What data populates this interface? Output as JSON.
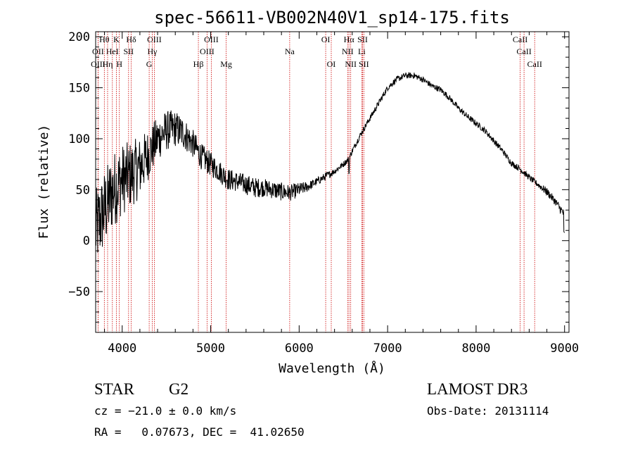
{
  "chart_data": {
    "type": "line",
    "title": "spec-56611-VB002N40V1_sp14-175.fits",
    "xlabel": "Wavelength (Å)",
    "ylabel": "Flux (relative)",
    "xlim": [
      3700,
      9050
    ],
    "ylim": [
      -90,
      205
    ],
    "xticks": [
      4000,
      5000,
      6000,
      7000,
      8000,
      9000
    ],
    "yticks": [
      -50,
      0,
      50,
      100,
      150,
      200
    ],
    "xtick_labels": [
      "4000",
      "5000",
      "6000",
      "7000",
      "8000",
      "9000"
    ],
    "ytick_labels": [
      "−50",
      "0",
      "50",
      "100",
      "150",
      "200"
    ],
    "series": [
      {
        "name": "spectrum",
        "x": [
          3700,
          3800,
          3900,
          4000,
          4100,
          4200,
          4300,
          4400,
          4500,
          4600,
          4700,
          4800,
          4900,
          5000,
          5100,
          5200,
          5300,
          5400,
          5500,
          5600,
          5700,
          5800,
          5900,
          6000,
          6100,
          6200,
          6300,
          6400,
          6500,
          6560,
          6600,
          6700,
          6800,
          6900,
          7000,
          7100,
          7200,
          7300,
          7400,
          7500,
          7600,
          7700,
          7800,
          7900,
          8000,
          8100,
          8200,
          8300,
          8400,
          8500,
          8600,
          8700,
          8800,
          8900,
          9000
        ],
        "y": [
          10,
          30,
          50,
          60,
          65,
          72,
          85,
          100,
          108,
          110,
          105,
          95,
          82,
          75,
          68,
          60,
          58,
          55,
          52,
          52,
          50,
          48,
          47,
          50,
          53,
          58,
          63,
          68,
          75,
          80,
          88,
          105,
          120,
          135,
          150,
          158,
          162,
          162,
          158,
          152,
          148,
          140,
          130,
          122,
          115,
          108,
          98,
          88,
          76,
          70,
          62,
          55,
          48,
          38,
          25
        ],
        "noise": [
          40,
          40,
          38,
          35,
          33,
          30,
          25,
          22,
          20,
          18,
          16,
          14,
          13,
          12,
          11,
          11,
          10,
          10,
          10,
          9,
          9,
          9,
          8,
          7,
          5,
          4,
          4,
          3,
          3,
          3,
          3,
          3,
          3,
          3,
          3,
          3,
          3,
          3,
          3,
          3,
          3,
          3,
          3,
          3,
          3,
          3,
          3,
          3,
          3,
          3,
          3,
          3,
          4,
          4,
          5
        ]
      }
    ],
    "spectral_lines": [
      {
        "label": "Hθ",
        "x": 3798,
        "row": 0
      },
      {
        "label": "K",
        "x": 3934,
        "row": 0
      },
      {
        "label": "Hδ",
        "x": 4102,
        "row": 0
      },
      {
        "label": "OIII",
        "x": 4363,
        "row": 0
      },
      {
        "label": "OIII",
        "x": 5007,
        "row": 0
      },
      {
        "label": "OI",
        "x": 6300,
        "row": 0
      },
      {
        "label": "Hα",
        "x": 6563,
        "row": 0
      },
      {
        "label": "SII",
        "x": 6717,
        "row": 0
      },
      {
        "label": "CaII",
        "x": 8498,
        "row": 0
      },
      {
        "label": "OII",
        "x": 3727,
        "row": 1
      },
      {
        "label": "HeI",
        "x": 3889,
        "row": 1
      },
      {
        "label": "SII",
        "x": 4072,
        "row": 1
      },
      {
        "label": "Hγ",
        "x": 4340,
        "row": 1
      },
      {
        "label": "OIII",
        "x": 4959,
        "row": 1
      },
      {
        "label": "Na",
        "x": 5893,
        "row": 1
      },
      {
        "label": "NII",
        "x": 6548,
        "row": 1
      },
      {
        "label": "Li",
        "x": 6708,
        "row": 1
      },
      {
        "label": "CaII",
        "x": 8542,
        "row": 1
      },
      {
        "label": "OIII",
        "x": 3727,
        "row": 2
      },
      {
        "label": "Hη",
        "x": 3835,
        "row": 2
      },
      {
        "label": "H",
        "x": 3968,
        "row": 2
      },
      {
        "label": "G",
        "x": 4305,
        "row": 2
      },
      {
        "label": "Hβ",
        "x": 4861,
        "row": 2
      },
      {
        "label": "Mg",
        "x": 5175,
        "row": 2
      },
      {
        "label": "OI",
        "x": 6363,
        "row": 2
      },
      {
        "label": "NII",
        "x": 6583,
        "row": 2
      },
      {
        "label": "SII",
        "x": 6731,
        "row": 2
      },
      {
        "label": "CaII",
        "x": 8662,
        "row": 2
      }
    ]
  },
  "info": {
    "object_class": "STAR",
    "subclass": "G2",
    "survey": "LAMOST DR3",
    "cz": "cz = −21.0 ± 0.0 km/s",
    "obs_date": "Obs-Date: 20131114",
    "coords": "RA =   0.07673, DEC =  41.02650"
  },
  "colors": {
    "line_marker": "#cc0000",
    "spectrum": "#000000",
    "axes": "#000000"
  }
}
